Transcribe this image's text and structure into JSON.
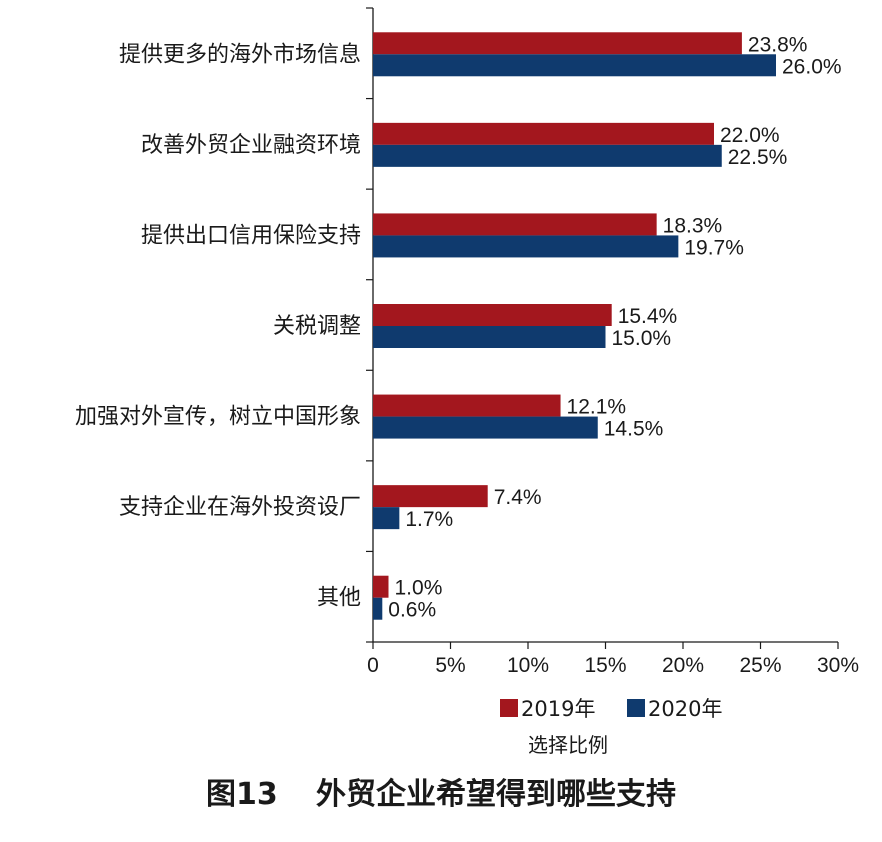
{
  "chart_data": {
    "type": "bar",
    "orientation": "horizontal",
    "categories": [
      "提供更多的海外市场信息",
      "改善外贸企业融资环境",
      "提供出口信用保险支持",
      "关税调整",
      "加强对外宣传，树立中国形象",
      "支持企业在海外投资设厂",
      "其他"
    ],
    "series": [
      {
        "name": "2019年",
        "color": "#a3171e",
        "values": [
          23.8,
          22.0,
          18.3,
          15.4,
          12.1,
          7.4,
          1.0
        ],
        "labels": [
          "23.8%",
          "22.0%",
          "18.3%",
          "15.4%",
          "12.1%",
          "7.4%",
          "1.0%"
        ]
      },
      {
        "name": "2020年",
        "color": "#0f3a6e",
        "values": [
          26.0,
          22.5,
          19.7,
          15.0,
          14.5,
          1.7,
          0.6
        ],
        "labels": [
          "26.0%",
          "22.5%",
          "19.7%",
          "15.0%",
          "14.5%",
          "1.7%",
          "0.6%"
        ]
      }
    ],
    "xlim": [
      0,
      30
    ],
    "xticks": [
      0,
      5,
      10,
      15,
      20,
      25,
      30
    ],
    "xtick_labels": [
      "0",
      "5%",
      "10%",
      "15%",
      "20%",
      "25%",
      "30%"
    ],
    "xlabel": "选择比例",
    "legend_position": "bottom",
    "grid": false
  },
  "caption": {
    "number": "图13",
    "title": "外贸企业希望得到哪些支持"
  }
}
